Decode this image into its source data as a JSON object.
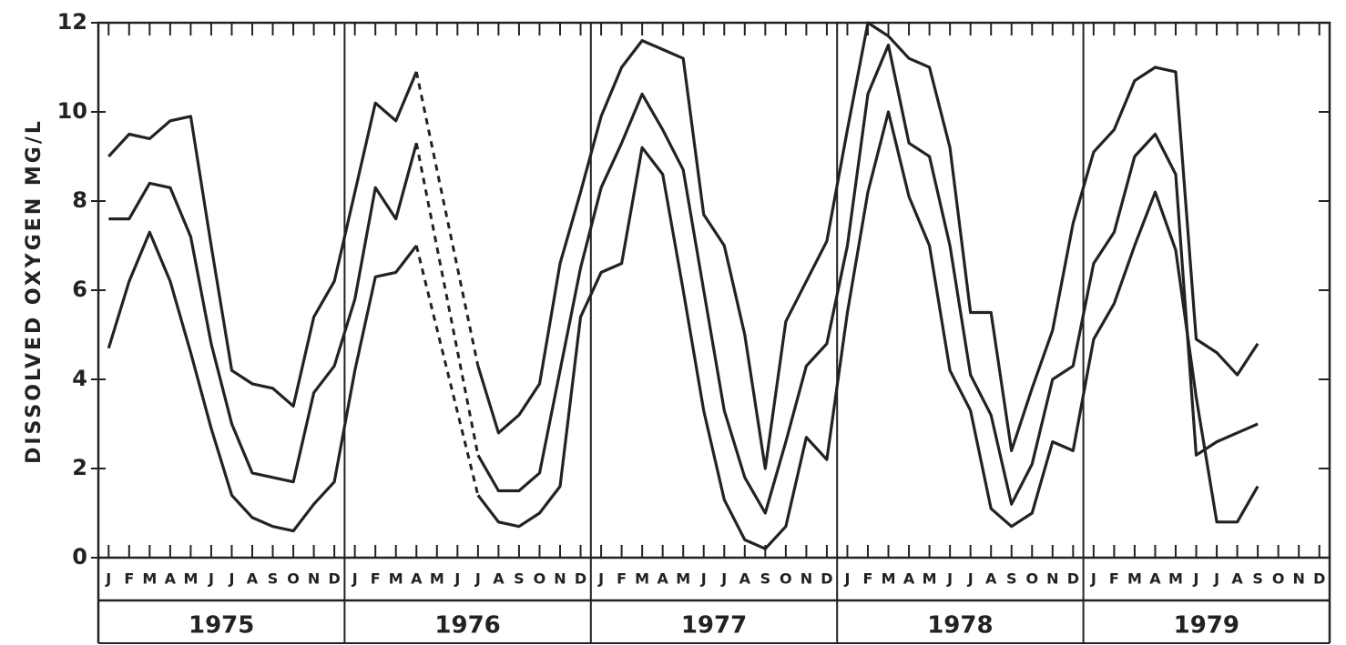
{
  "chart_data": {
    "type": "line",
    "y_label": "DISSOLVED OXYGEN MG/L",
    "categories": [
      "J",
      "F",
      "M",
      "A",
      "M",
      "J",
      "J",
      "A",
      "S",
      "O",
      "N",
      "D",
      "J",
      "F",
      "M",
      "A",
      "M",
      "J",
      "J",
      "A",
      "S",
      "O",
      "N",
      "D",
      "J",
      "F",
      "M",
      "A",
      "M",
      "J",
      "J",
      "A",
      "S",
      "O",
      "N",
      "D",
      "J",
      "F",
      "M",
      "A",
      "M",
      "J",
      "J",
      "A",
      "S",
      "O",
      "N",
      "D",
      "J",
      "F",
      "M",
      "A",
      "M",
      "J",
      "J",
      "A",
      "S",
      "O",
      "N",
      "D"
    ],
    "years": [
      "1975",
      "1976",
      "1977",
      "1978",
      "1979"
    ],
    "color": "#222222",
    "bridge_gaps_dashed": true,
    "series": [
      {
        "color": "#222222",
        "values": [
          9.0,
          9.5,
          9.4,
          9.8,
          9.9,
          7.0,
          4.2,
          3.9,
          3.8,
          3.4,
          5.4,
          6.2,
          8.2,
          10.2,
          9.8,
          10.9,
          null,
          null,
          4.3,
          2.8,
          3.2,
          3.9,
          6.6,
          8.2,
          9.9,
          11.0,
          11.6,
          11.4,
          11.2,
          7.7,
          7.0,
          5.0,
          2.0,
          5.3,
          6.2,
          7.1,
          9.6,
          12.0,
          11.7,
          11.2,
          11.0,
          9.2,
          5.5,
          5.5,
          2.4,
          3.8,
          5.1,
          7.5,
          9.1,
          9.6,
          10.7,
          11.0,
          10.9,
          4.9,
          4.6,
          4.1,
          4.8,
          null,
          null,
          null
        ]
      },
      {
        "color": "#222222",
        "values": [
          7.6,
          7.6,
          8.4,
          8.3,
          7.2,
          4.8,
          3.0,
          1.9,
          1.8,
          1.7,
          3.7,
          4.3,
          5.8,
          8.3,
          7.6,
          9.3,
          null,
          null,
          2.3,
          1.5,
          1.5,
          1.9,
          4.2,
          6.5,
          8.3,
          9.3,
          10.4,
          9.6,
          8.7,
          6.0,
          3.3,
          1.8,
          1.0,
          2.6,
          4.3,
          4.8,
          7.0,
          10.4,
          11.5,
          9.3,
          9.0,
          7.0,
          4.1,
          3.2,
          1.2,
          2.1,
          4.0,
          4.3,
          6.6,
          7.3,
          9.0,
          9.5,
          8.6,
          2.3,
          2.6,
          2.8,
          3.0,
          null,
          null,
          null
        ]
      },
      {
        "color": "#222222",
        "values": [
          4.7,
          6.2,
          7.3,
          6.2,
          4.6,
          2.9,
          1.4,
          0.9,
          0.7,
          0.6,
          1.2,
          1.7,
          4.2,
          6.3,
          6.4,
          7.0,
          null,
          null,
          1.4,
          0.8,
          0.7,
          1.0,
          1.6,
          5.4,
          6.4,
          6.6,
          9.2,
          8.6,
          6.0,
          3.3,
          1.3,
          0.4,
          0.2,
          0.7,
          2.7,
          2.2,
          5.5,
          8.2,
          10.0,
          8.1,
          7.0,
          4.2,
          3.3,
          1.1,
          0.7,
          1.0,
          2.6,
          2.4,
          4.9,
          5.7,
          7.0,
          8.2,
          6.9,
          3.6,
          0.8,
          0.8,
          1.6,
          null,
          null,
          null
        ]
      }
    ],
    "ylim": [
      0,
      12
    ],
    "yticks": [
      0,
      2,
      4,
      6,
      8,
      10,
      12
    ]
  }
}
